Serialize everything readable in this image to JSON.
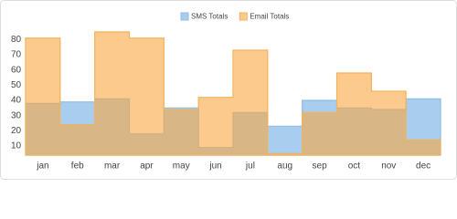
{
  "chart_data": {
    "type": "step-area",
    "categories": [
      "jan",
      "feb",
      "mar",
      "apr",
      "may",
      "jun",
      "jul",
      "aug",
      "sep",
      "oct",
      "nov",
      "dec"
    ],
    "series": [
      {
        "name": "SMS Totals",
        "color": "#a8cdee",
        "stroke": "#8fbde6",
        "opacity": 1,
        "values": [
          38,
          39,
          41,
          18,
          35,
          9,
          32,
          23,
          40,
          35,
          34,
          41
        ]
      },
      {
        "name": "Email Totals",
        "color": "#f9a640",
        "stroke": "#f3b25c",
        "opacity": 0.6,
        "values": [
          81,
          24,
          85,
          81,
          34,
          42,
          73,
          5,
          32,
          58,
          46,
          14
        ]
      }
    ],
    "ylim": [
      4,
      88
    ],
    "yticks": [
      10,
      20,
      30,
      40,
      50,
      60,
      70,
      80
    ],
    "grid": false,
    "legend": "top"
  }
}
